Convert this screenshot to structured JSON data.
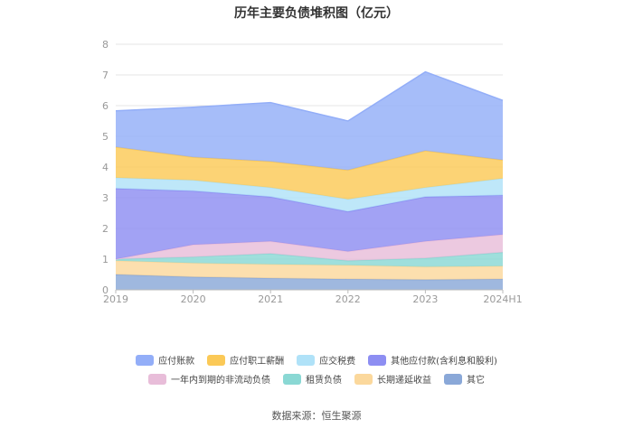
{
  "chart_data": {
    "type": "area",
    "title": "历年主要负债堆积图（亿元）",
    "categories": [
      "2019",
      "2020",
      "2021",
      "2022",
      "2023",
      "2024H1"
    ],
    "ylim": [
      0,
      8
    ],
    "yticks": [
      "0",
      "1",
      "2",
      "3",
      "4",
      "5",
      "6",
      "7",
      "8"
    ],
    "grid": true,
    "legend_position": "bottom",
    "series": [
      {
        "name": "其它",
        "color": "#8aa8d8",
        "values": [
          0.5,
          0.42,
          0.38,
          0.35,
          0.33,
          0.35
        ]
      },
      {
        "name": "长期递延收益",
        "color": "#fbd89c",
        "values": [
          0.45,
          0.45,
          0.45,
          0.45,
          0.42,
          0.42
        ]
      },
      {
        "name": "租赁负债",
        "color": "#8ad8d4",
        "values": [
          0.05,
          0.2,
          0.35,
          0.15,
          0.28,
          0.45
        ]
      },
      {
        "name": "一年内到期的非流动负债",
        "color": "#e8bdd9",
        "values": [
          0.0,
          0.4,
          0.4,
          0.3,
          0.55,
          0.58
        ]
      },
      {
        "name": "其他应付款(含利息和股利)",
        "color": "#8d8ef2",
        "values": [
          2.3,
          1.75,
          1.45,
          1.3,
          1.45,
          1.28
        ]
      },
      {
        "name": "应交税费",
        "color": "#b0e2f8",
        "values": [
          0.35,
          0.35,
          0.3,
          0.4,
          0.3,
          0.55
        ]
      },
      {
        "name": "应付职工薪酬",
        "color": "#fbc957",
        "values": [
          1.0,
          0.75,
          0.85,
          0.95,
          1.2,
          0.6
        ]
      },
      {
        "name": "应付账款",
        "color": "#93aef8",
        "values": [
          1.18,
          1.63,
          1.92,
          1.6,
          2.57,
          1.94
        ]
      }
    ],
    "source": "数据来源：恒生聚源"
  }
}
